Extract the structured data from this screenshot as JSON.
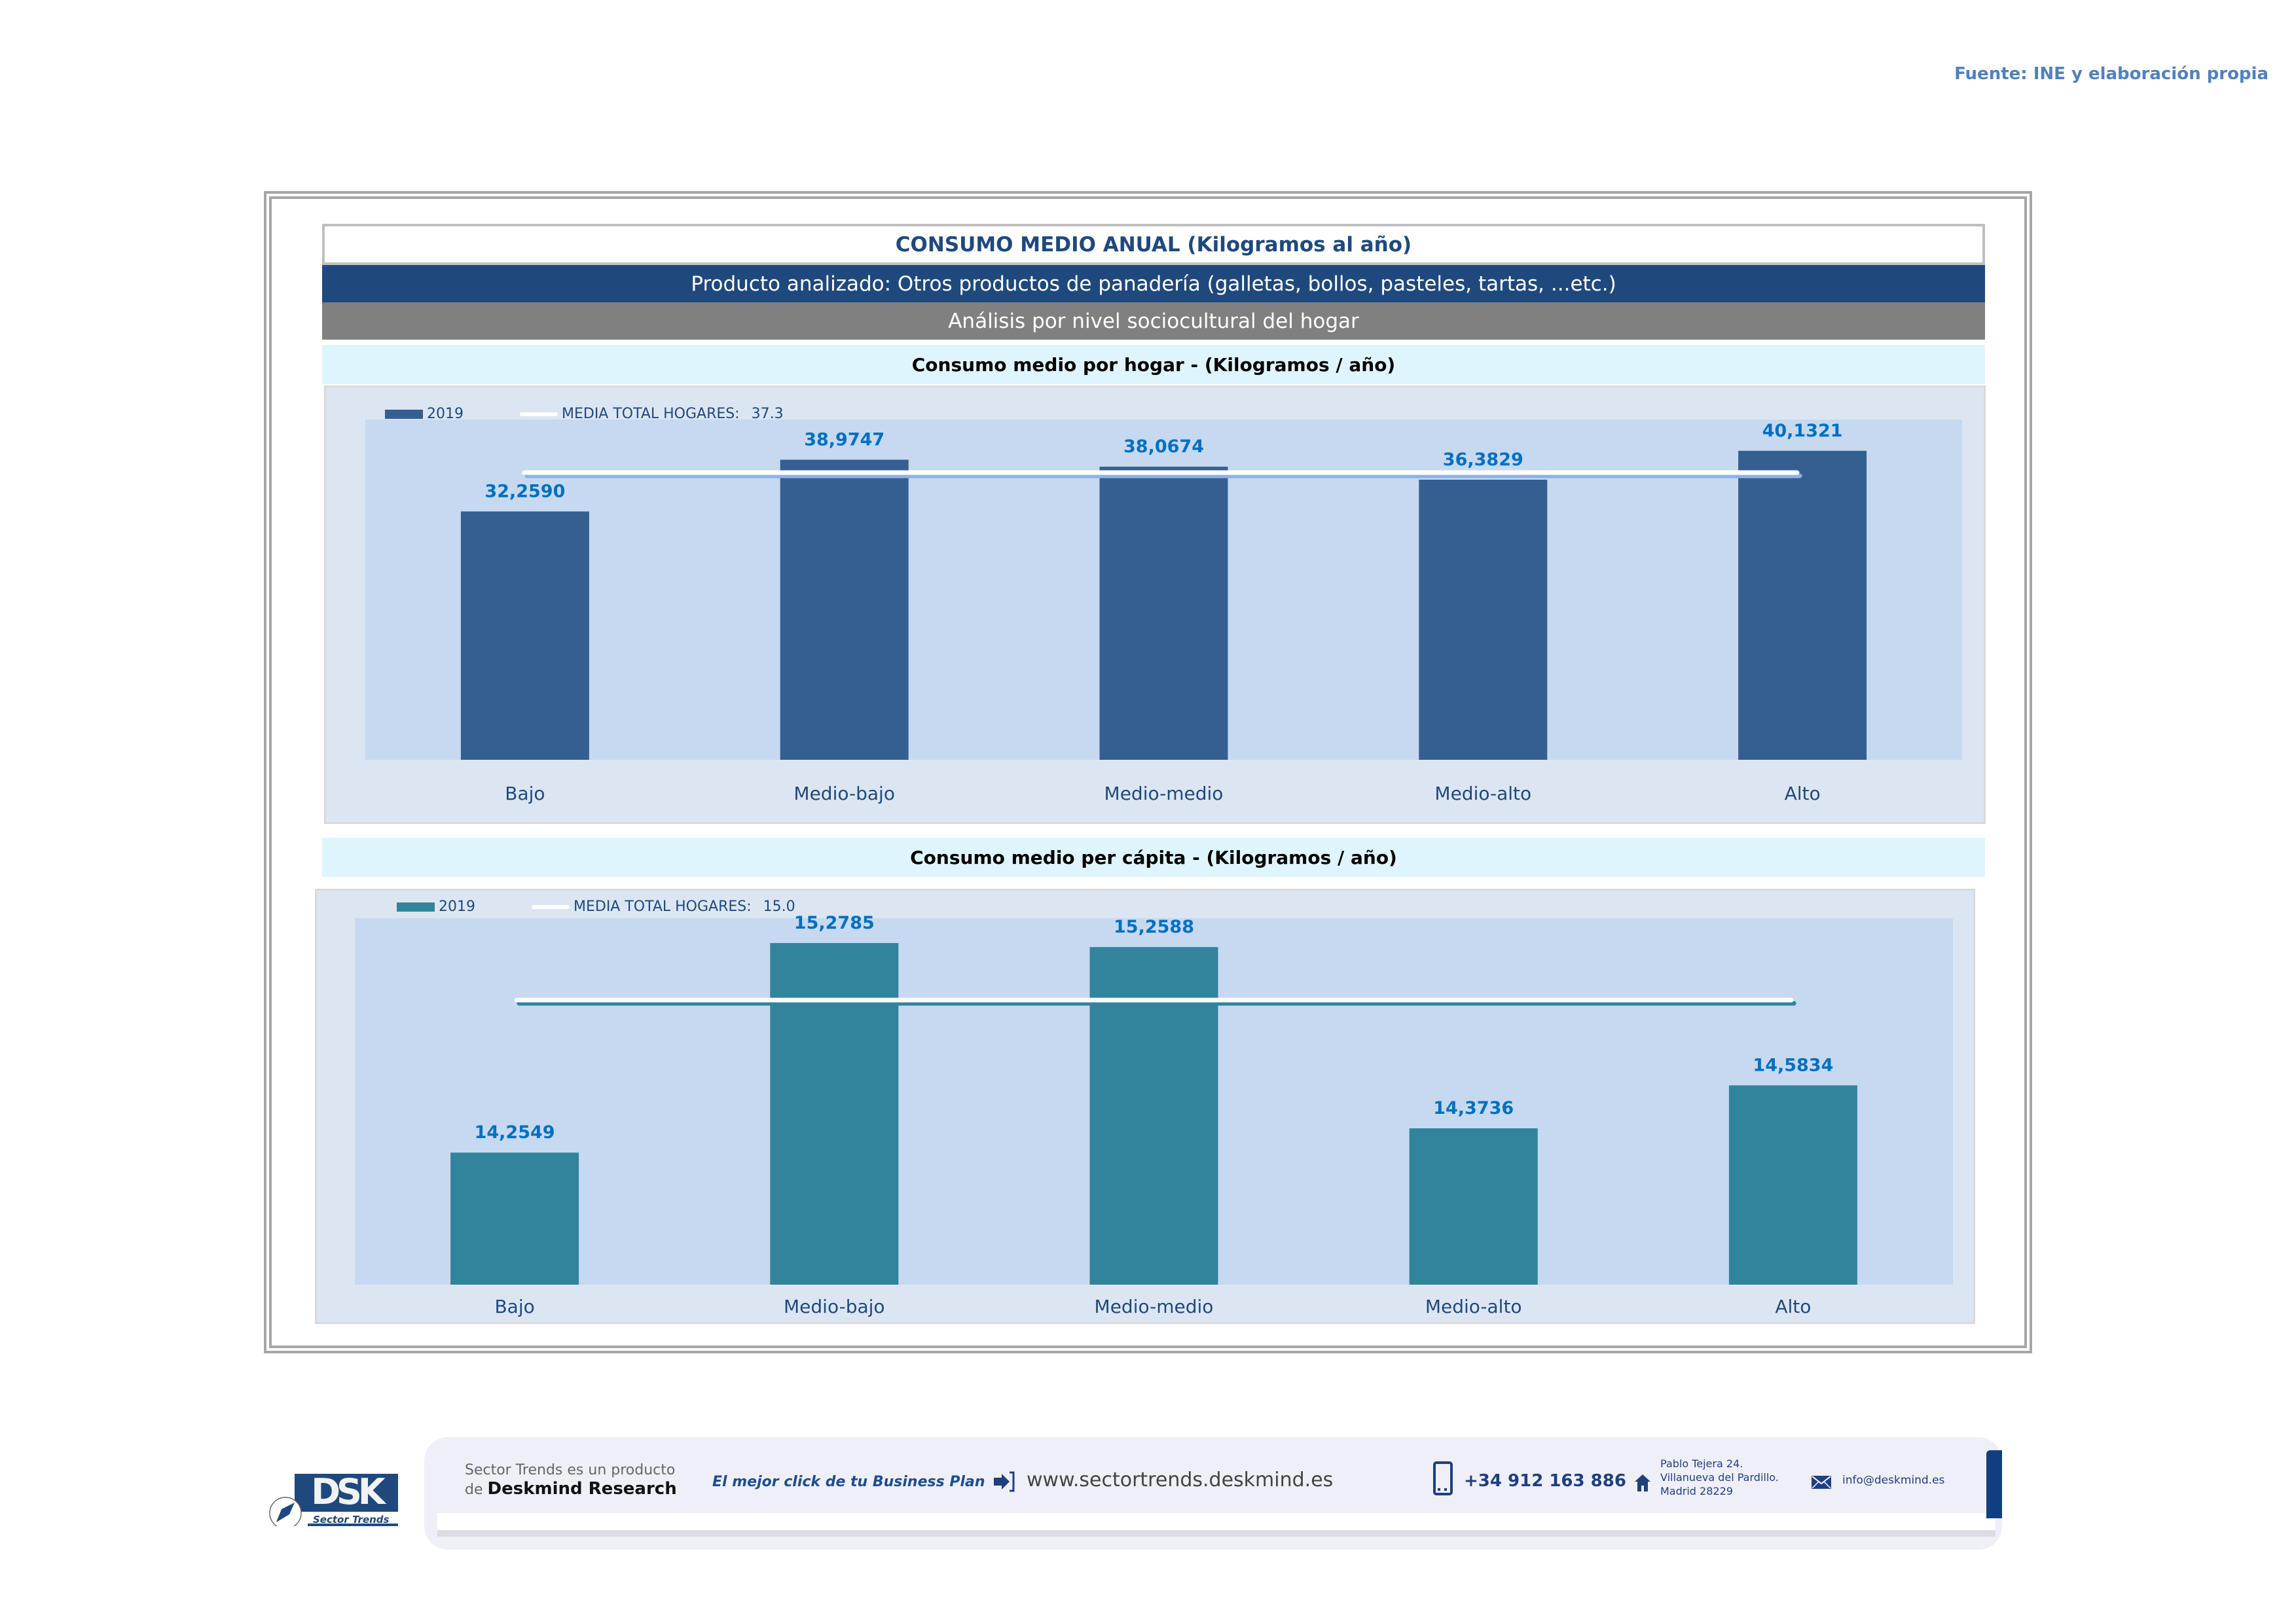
{
  "source": "Fuente: INE y elaboración propia",
  "header": {
    "title": "CONSUMO MEDIO ANUAL (Kilogramos al año)",
    "product": "Producto analizado: Otros productos de panadería (galletas, bollos, pasteles, tartas, ...etc.)",
    "analysis": "Análisis por nivel sociocultural del hogar"
  },
  "colors": {
    "brand_dark": "#1f497d",
    "bar_hogar": "#365f91",
    "bar_percapita": "#31849b",
    "data_label": "#0070c0",
    "plot_bg": "#c6d9f0",
    "chart_bg": "#dce6f2"
  },
  "chart_data": [
    {
      "type": "bar",
      "title": "Consumo medio por hogar -  (Kilogramos / año)",
      "categories": [
        "Bajo",
        "Medio-bajo",
        "Medio-medio",
        "Medio-alto",
        "Alto"
      ],
      "series": [
        {
          "name": "2019",
          "values": [
            32.259,
            38.9747,
            38.0674,
            36.3829,
            40.1321
          ],
          "labels": [
            "32,2590",
            "38,9747",
            "38,0674",
            "36,3829",
            "40,1321"
          ]
        }
      ],
      "reference_line": {
        "name": "MEDIA TOTAL  HOGARES:",
        "value": 37.3,
        "value_label": "37.3"
      },
      "xlabel": "",
      "ylabel": "",
      "ylim": [
        0,
        44.2
      ],
      "grid": false,
      "legend": "top-left"
    },
    {
      "type": "bar",
      "title": "Consumo medio per cápita -  (Kilogramos / año)",
      "categories": [
        "Bajo",
        "Medio-bajo",
        "Medio-medio",
        "Medio-alto",
        "Alto"
      ],
      "series": [
        {
          "name": "2019",
          "values": [
            14.2549,
            15.2785,
            15.2588,
            14.3736,
            14.5834
          ],
          "labels": [
            "14,2549",
            "15,2785",
            "15,2588",
            "14,3736",
            "14,5834"
          ]
        }
      ],
      "reference_line": {
        "name": "MEDIA TOTAL  HOGARES:",
        "value": 15.0,
        "value_label": "15.0"
      },
      "xlabel": "",
      "ylabel": "",
      "ylim": [
        13.61,
        15.4
      ],
      "grid": false,
      "legend": "top-left"
    }
  ],
  "footer": {
    "logo_text": "DSK",
    "logo_subtitle": "Sector Trends",
    "product_line1": "Sector Trends es un producto",
    "product_line2_prefix": "de",
    "product_line2_brand": "Deskmind Research",
    "slogan": "El mejor click de tu Business Plan",
    "website": "www.sectortrends.deskmind.es",
    "phone": "+34 912 163 886",
    "address_line1": "Pablo Tejera 24.",
    "address_line2": "Villanueva del Pardillo.",
    "address_line3": "Madrid 28229",
    "email": "info@deskmind.es",
    "icons": {
      "web": "login-arrow-icon",
      "phone": "mobile-phone-icon",
      "address": "home-icon",
      "email": "envelope-icon"
    }
  }
}
